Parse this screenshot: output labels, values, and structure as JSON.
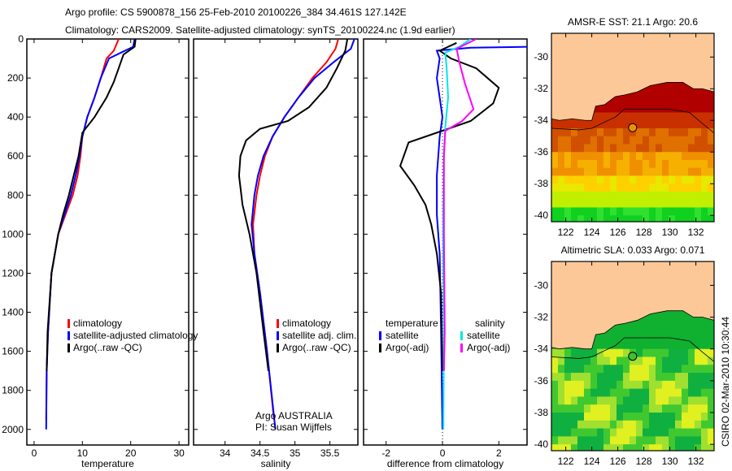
{
  "title_lines": [
    "Argo profile: CS 5900878_156 25-Feb-2010 20100226_384 34.461S 127.142E",
    "Climatology: CARS2009. Satellite-adjusted climatology: synTS_20100224.nc (1.9d earlier)"
  ],
  "side_label": "CSIRO 02-Mar-2010 10:30:44",
  "chart_data": [
    {
      "type": "line",
      "id": "temperature",
      "xlabel": "temperature",
      "ylabel": "",
      "xlim": [
        -1.5,
        32
      ],
      "ylim": [
        2080,
        0
      ],
      "xticks": [
        0,
        10,
        20,
        30
      ],
      "yticks": [
        0,
        200,
        400,
        600,
        800,
        1000,
        1200,
        1400,
        1600,
        1800,
        2000
      ],
      "legend": {
        "placement": "bottom-right",
        "entries": [
          "climatology",
          "satellite-adjusted climatology",
          "Argo(..raw -QC)"
        ]
      },
      "series": [
        {
          "name": "climatology",
          "color": "#ff0000",
          "points": [
            [
              17.5,
              0
            ],
            [
              17,
              30
            ],
            [
              16.5,
              60
            ],
            [
              15,
              100
            ],
            [
              13.8,
              200
            ],
            [
              12.5,
              300
            ],
            [
              11,
              400
            ],
            [
              10,
              500
            ],
            [
              9.6,
              600
            ],
            [
              9,
              700
            ],
            [
              8,
              800
            ],
            [
              6.5,
              900
            ],
            [
              5,
              1000
            ],
            [
              3.6,
              1200
            ],
            [
              2.9,
              1500
            ],
            [
              2.6,
              1700
            ],
            [
              2.5,
              1950
            ]
          ]
        },
        {
          "name": "satellite-adjusted climatology",
          "color": "#0000ff",
          "points": [
            [
              20.8,
              0
            ],
            [
              20.5,
              40
            ],
            [
              18,
              70
            ],
            [
              15.5,
              100
            ],
            [
              13.8,
              200
            ],
            [
              12.5,
              300
            ],
            [
              11,
              400
            ],
            [
              10,
              500
            ],
            [
              9.4,
              600
            ],
            [
              8.6,
              700
            ],
            [
              7.6,
              800
            ],
            [
              6.3,
              900
            ],
            [
              5,
              1000
            ],
            [
              3.6,
              1200
            ],
            [
              2.9,
              1500
            ],
            [
              2.6,
              1700
            ],
            [
              2.5,
              2000
            ]
          ]
        },
        {
          "name": "Argo(..raw -QC)",
          "color": "#000000",
          "points": [
            [
              21,
              0
            ],
            [
              20.8,
              40
            ],
            [
              18.5,
              80
            ],
            [
              17.5,
              150
            ],
            [
              16.5,
              220
            ],
            [
              15,
              300
            ],
            [
              12.5,
              400
            ],
            [
              10,
              480
            ],
            [
              9.2,
              600
            ],
            [
              8.2,
              700
            ],
            [
              7.2,
              800
            ],
            [
              6,
              900
            ],
            [
              5,
              1000
            ],
            [
              3.6,
              1200
            ],
            [
              2.8,
              1500
            ],
            [
              2.6,
              1700
            ]
          ]
        }
      ]
    },
    {
      "type": "line",
      "id": "salinity",
      "xlabel": "salinity",
      "ylabel": "",
      "xlim": [
        33.55,
        35.9
      ],
      "ylim": [
        2080,
        0
      ],
      "xticks": [
        34,
        34.5,
        35,
        35.5
      ],
      "legend": {
        "placement": "bottom-right",
        "entries": [
          "climatology",
          "satellite adj. clim.",
          "Argo(..raw -QC)"
        ]
      },
      "annotation": [
        "Argo AUSTRALIA",
        "PI: Susan Wijffels"
      ],
      "series": [
        {
          "name": "climatology",
          "color": "#ff0000",
          "points": [
            [
              35.62,
              0
            ],
            [
              35.58,
              50
            ],
            [
              35.45,
              120
            ],
            [
              35.25,
              200
            ],
            [
              35.05,
              300
            ],
            [
              34.85,
              400
            ],
            [
              34.68,
              500
            ],
            [
              34.57,
              600
            ],
            [
              34.5,
              700
            ],
            [
              34.45,
              800
            ],
            [
              34.4,
              950
            ],
            [
              34.42,
              1100
            ],
            [
              34.5,
              1300
            ],
            [
              34.6,
              1600
            ],
            [
              34.7,
              1950
            ]
          ]
        },
        {
          "name": "satellite adj. clim.",
          "color": "#0000ff",
          "points": [
            [
              35.85,
              0
            ],
            [
              35.8,
              50
            ],
            [
              35.55,
              120
            ],
            [
              35.28,
              200
            ],
            [
              35.05,
              300
            ],
            [
              34.85,
              400
            ],
            [
              34.68,
              500
            ],
            [
              34.55,
              600
            ],
            [
              34.47,
              700
            ],
            [
              34.42,
              800
            ],
            [
              34.38,
              950
            ],
            [
              34.42,
              1100
            ],
            [
              34.5,
              1300
            ],
            [
              34.6,
              1600
            ],
            [
              34.72,
              2000
            ]
          ]
        },
        {
          "name": "Argo(..raw -QC)",
          "color": "#000000",
          "points": [
            [
              35.75,
              0
            ],
            [
              35.72,
              60
            ],
            [
              35.6,
              150
            ],
            [
              35.45,
              250
            ],
            [
              35.2,
              350
            ],
            [
              34.9,
              420
            ],
            [
              34.5,
              460
            ],
            [
              34.3,
              520
            ],
            [
              34.22,
              600
            ],
            [
              34.2,
              700
            ],
            [
              34.25,
              850
            ],
            [
              34.35,
              1000
            ],
            [
              34.45,
              1200
            ],
            [
              34.55,
              1500
            ],
            [
              34.62,
              1700
            ]
          ]
        }
      ]
    },
    {
      "type": "line",
      "id": "difference",
      "xlabel": "difference from climatology",
      "ylabel": "",
      "xlim": [
        -2.8,
        3
      ],
      "ylim": [
        2080,
        0
      ],
      "xticks": [
        -2,
        0,
        2
      ],
      "legend": {
        "placement": "bottom",
        "entries": [
          "temperature",
          "satellite",
          "Argo(-adj)",
          "salinity",
          "satellite",
          "Argo(-adj)"
        ]
      },
      "series": [
        {
          "name": "temperature satellite",
          "color": "#0000ff",
          "points": [
            [
              3.1,
              40
            ],
            [
              1,
              45
            ],
            [
              -0.2,
              60
            ],
            [
              -0.1,
              100
            ],
            [
              -0.2,
              200
            ],
            [
              -0.1,
              300
            ],
            [
              0,
              400
            ],
            [
              -0.1,
              500
            ],
            [
              -0.2,
              700
            ],
            [
              -0.2,
              900
            ],
            [
              -0.1,
              1100
            ],
            [
              -0.05,
              1500
            ],
            [
              0,
              2000
            ]
          ]
        },
        {
          "name": "temperature Argo(-adj)",
          "color": "#000000",
          "points": [
            [
              0.5,
              20
            ],
            [
              -0.1,
              60
            ],
            [
              0.3,
              100
            ],
            [
              1.2,
              150
            ],
            [
              2,
              250
            ],
            [
              1.8,
              330
            ],
            [
              1,
              420
            ],
            [
              0,
              470
            ],
            [
              -1.2,
              530
            ],
            [
              -1.5,
              650
            ],
            [
              -1,
              750
            ],
            [
              -0.6,
              850
            ],
            [
              -0.4,
              950
            ],
            [
              -0.2,
              1100
            ],
            [
              -0.05,
              1300
            ],
            [
              0,
              1700
            ]
          ]
        },
        {
          "name": "salinity satellite",
          "color": "#00e5ee",
          "points": [
            [
              1,
              0
            ],
            [
              0.6,
              40
            ],
            [
              0.1,
              70
            ],
            [
              0.15,
              150
            ],
            [
              0.2,
              300
            ],
            [
              0.1,
              450
            ],
            [
              0.05,
              600
            ],
            [
              0.02,
              1000
            ],
            [
              0.05,
              1500
            ],
            [
              0.03,
              2000
            ]
          ]
        },
        {
          "name": "salinity Argo(-adj)",
          "color": "#ff00ff",
          "points": [
            [
              1.2,
              0
            ],
            [
              0.5,
              50
            ],
            [
              0.6,
              120
            ],
            [
              0.8,
              230
            ],
            [
              1.1,
              360
            ],
            [
              0.7,
              420
            ],
            [
              0.1,
              470
            ],
            [
              0.05,
              600
            ],
            [
              0.05,
              1000
            ],
            [
              0.08,
              1500
            ],
            [
              0.05,
              1700
            ]
          ]
        }
      ]
    }
  ],
  "maps": [
    {
      "title": "AMSR-E SST: 21.1 Argo: 20.6",
      "kind": "sst",
      "xticks": [
        122,
        124,
        126,
        128,
        130,
        132
      ],
      "yticks": [
        -30,
        -32,
        -34,
        -36,
        -38,
        -40
      ],
      "marker": [
        127.14,
        -34.46
      ]
    },
    {
      "title": "Altimetric SLA: 0.033 Argo: 0.071",
      "kind": "sla",
      "xticks": [
        122,
        124,
        126,
        128,
        130,
        132
      ],
      "yticks": [
        -30,
        -32,
        -34,
        -36,
        -38,
        -40
      ],
      "marker": [
        127.14,
        -34.46
      ]
    }
  ],
  "colors": {
    "land": "#fdc897"
  }
}
